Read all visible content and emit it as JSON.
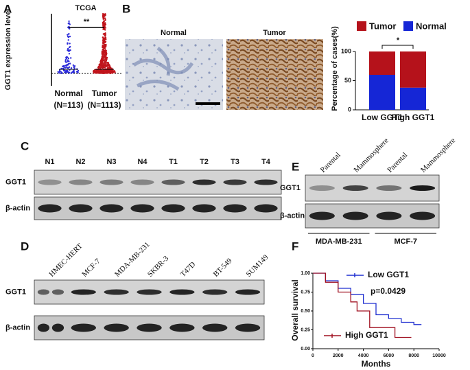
{
  "panel_letters": [
    "A",
    "B",
    "C",
    "D",
    "E",
    "F"
  ],
  "chart_data": [
    {
      "type": "dot",
      "title": "TCGA",
      "y_label": "GGT1 expression level",
      "categories": [
        "Normal",
        "Tumor"
      ],
      "group_sizes": [
        "(N=113)",
        "(N=1113)"
      ],
      "colors": [
        "#2b2bd9",
        "#c0141b"
      ],
      "annotation": "**"
    },
    {
      "type": "stacked_bar",
      "y_label": "Percentage of cases(%)",
      "categories": [
        "Low GGT1",
        "High GGT1"
      ],
      "series": [
        {
          "name": "Tumor",
          "color": "#b5121b",
          "values": [
            40,
            62
          ]
        },
        {
          "name": "Normal",
          "color": "#1526d6",
          "values": [
            60,
            38
          ]
        }
      ],
      "ylim": [
        0,
        100
      ],
      "yticks": [
        0,
        50,
        100
      ],
      "annotation": "*",
      "legend": "top"
    },
    {
      "type": "step_line",
      "x_label": "Months",
      "y_label": "Overall survival",
      "xlim": [
        0,
        10000
      ],
      "xticks": [
        0,
        2000,
        4000,
        6000,
        8000,
        10000
      ],
      "ylim": [
        0,
        1
      ],
      "yticks": [
        {
          "value": 0,
          "label": "0.00"
        },
        {
          "value": 0.25,
          "label": "0.25"
        },
        {
          "value": 0.5,
          "label": "0.50"
        },
        {
          "value": 0.75,
          "label": "0.75"
        },
        {
          "value": 1,
          "label": "1.00"
        }
      ],
      "series": [
        {
          "name": "Low GGT1",
          "color": "#1f2fd0",
          "x": [
            0,
            1000,
            2000,
            3000,
            4000,
            5000,
            6000,
            7000,
            8000,
            8600
          ],
          "values": [
            1,
            0.9,
            0.8,
            0.72,
            0.6,
            0.45,
            0.4,
            0.35,
            0.32,
            0.32
          ]
        },
        {
          "name": "High GGT1",
          "color": "#a01020",
          "x": [
            0,
            1000,
            2000,
            3000,
            3500,
            4500,
            6500,
            7000,
            7800
          ],
          "values": [
            1,
            0.88,
            0.75,
            0.62,
            0.5,
            0.28,
            0.15,
            0.15,
            0.15
          ]
        }
      ],
      "annotation": "p=0.0429"
    }
  ],
  "micrographs": {
    "labels": [
      "Normal",
      "Tumor"
    ]
  },
  "blots": [
    {
      "lanes": [
        "N1",
        "N2",
        "N3",
        "N4",
        "T1",
        "T2",
        "T3",
        "T4"
      ],
      "rows": [
        "GGT1",
        "β-actin"
      ]
    },
    {
      "lanes": [
        "HMEC-HERT",
        "MCF-7",
        "MDA-MB-231",
        "SKBR-3",
        "T47D",
        "BT-549",
        "SUM149"
      ],
      "rows": [
        "GGT1",
        "β-actin"
      ]
    },
    {
      "lanes": [
        "Parental",
        "Mammosphere",
        "Parental",
        "Mammosphere"
      ],
      "rows": [
        "GGT1",
        "β-actin"
      ],
      "groups": [
        "MDA-MB-231",
        "MCF-7"
      ]
    }
  ]
}
